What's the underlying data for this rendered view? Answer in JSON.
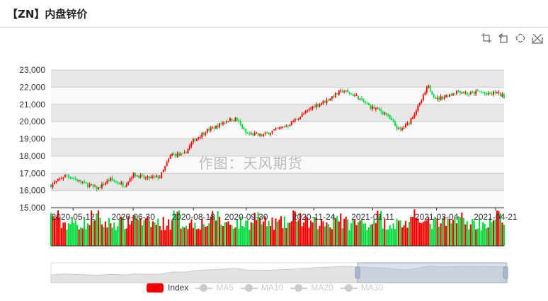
{
  "header": {
    "title": "【ZN】内盘锌价"
  },
  "toolbox": {
    "icons": [
      "zoom-select-icon",
      "zoom-reset-icon",
      "restore-icon",
      "download-icon"
    ]
  },
  "watermark": "作图：天风期货",
  "legend": [
    {
      "name": "Index",
      "color": "#ee0000",
      "active": true
    },
    {
      "name": "MA5",
      "color": "#cccccc",
      "active": false
    },
    {
      "name": "MA10",
      "color": "#cccccc",
      "active": false
    },
    {
      "name": "MA20",
      "color": "#cccccc",
      "active": false
    },
    {
      "name": "MA30",
      "color": "#cccccc",
      "active": false
    }
  ],
  "chart_data": {
    "type": "candlestick",
    "title": "【ZN】内盘锌价",
    "y_ticks": [
      "15,000",
      "16,000",
      "17,000",
      "18,000",
      "19,000",
      "20,000",
      "21,000",
      "22,000",
      "23,000"
    ],
    "ylim": [
      15000,
      23000
    ],
    "x_ticks": [
      "2020-05-12",
      "2020-06-30",
      "2020-08-18",
      "2020-09-30",
      "2020-11-24",
      "2021-01-11",
      "2021-03-04",
      "2021-04-21"
    ],
    "x_range": [
      "2020-04-24",
      "2021-04-28"
    ],
    "grid": "horizontal, alternating light gray bands",
    "up_color": "#ee0000",
    "down_color": "#00da3c",
    "close_anchors": [
      {
        "x": "2020-04-24",
        "y": 16300
      },
      {
        "x": "2020-05-06",
        "y": 16900
      },
      {
        "x": "2020-05-20",
        "y": 16450
      },
      {
        "x": "2020-06-01",
        "y": 16100
      },
      {
        "x": "2020-06-11",
        "y": 16650
      },
      {
        "x": "2020-06-23",
        "y": 16300
      },
      {
        "x": "2020-06-30",
        "y": 16950
      },
      {
        "x": "2020-07-10",
        "y": 16700
      },
      {
        "x": "2020-07-22",
        "y": 16800
      },
      {
        "x": "2020-07-31",
        "y": 18100
      },
      {
        "x": "2020-08-10",
        "y": 18050
      },
      {
        "x": "2020-08-18",
        "y": 18900
      },
      {
        "x": "2020-08-28",
        "y": 19450
      },
      {
        "x": "2020-09-04",
        "y": 19650
      },
      {
        "x": "2020-09-15",
        "y": 20100
      },
      {
        "x": "2020-09-22",
        "y": 20150
      },
      {
        "x": "2020-09-30",
        "y": 19300
      },
      {
        "x": "2020-10-13",
        "y": 19200
      },
      {
        "x": "2020-10-23",
        "y": 19500
      },
      {
        "x": "2020-11-03",
        "y": 19800
      },
      {
        "x": "2020-11-13",
        "y": 20300
      },
      {
        "x": "2020-11-24",
        "y": 20900
      },
      {
        "x": "2020-12-04",
        "y": 21200
      },
      {
        "x": "2020-12-11",
        "y": 21550
      },
      {
        "x": "2020-12-18",
        "y": 21800
      },
      {
        "x": "2020-12-28",
        "y": 21500
      },
      {
        "x": "2021-01-08",
        "y": 20900
      },
      {
        "x": "2021-01-21",
        "y": 20500
      },
      {
        "x": "2021-02-02",
        "y": 19450
      },
      {
        "x": "2021-02-09",
        "y": 19900
      },
      {
        "x": "2021-02-19",
        "y": 21100
      },
      {
        "x": "2021-02-25",
        "y": 22050
      },
      {
        "x": "2021-03-04",
        "y": 21300
      },
      {
        "x": "2021-03-12",
        "y": 21500
      },
      {
        "x": "2021-03-22",
        "y": 21800
      },
      {
        "x": "2021-03-30",
        "y": 21600
      },
      {
        "x": "2021-04-08",
        "y": 21750
      },
      {
        "x": "2021-04-15",
        "y": 21550
      },
      {
        "x": "2021-04-21",
        "y": 21700
      },
      {
        "x": "2021-04-28",
        "y": 21450
      }
    ],
    "volume_panel": "red/green volume bars under the candlesticks",
    "datazoom": {
      "start": "2020-04-24",
      "end": "2021-04-28"
    }
  }
}
